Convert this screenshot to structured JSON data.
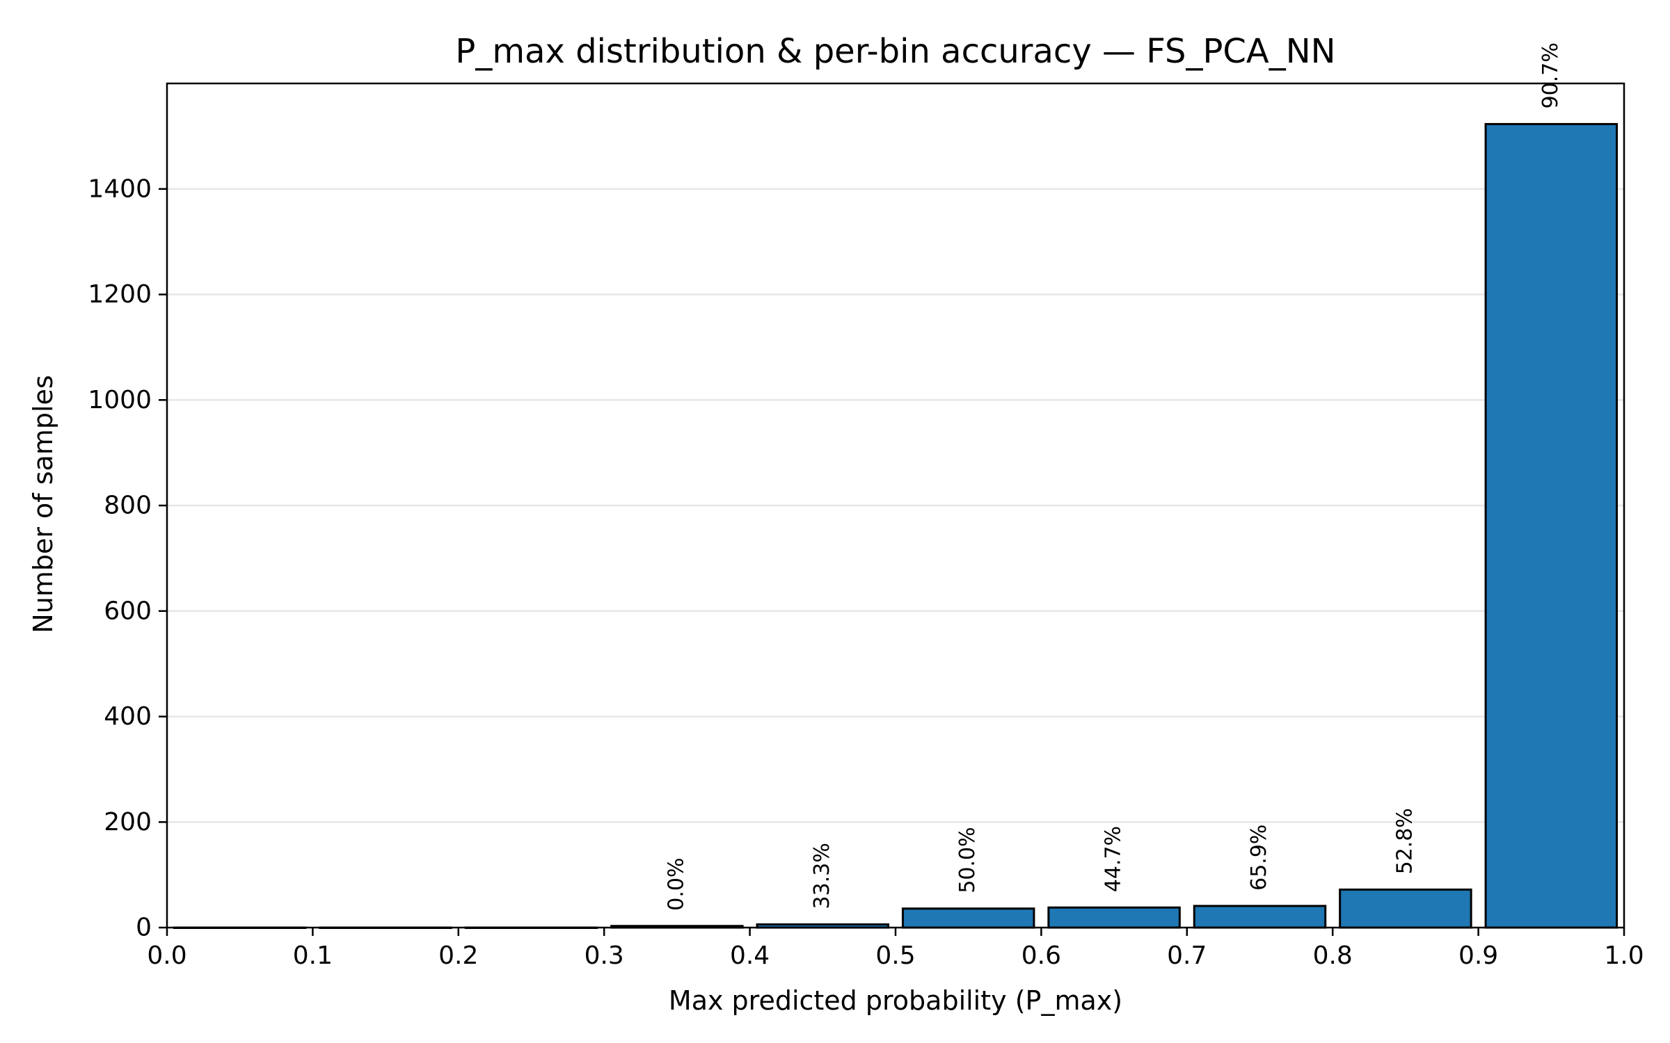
{
  "chart_data": {
    "type": "bar",
    "title": "P_max distribution & per-bin accuracy — FS_PCA_NN",
    "xlabel": "Max predicted probability (P_max)",
    "ylabel": "Number of samples",
    "xlim": [
      0.0,
      1.0
    ],
    "ylim": [
      0,
      1600
    ],
    "xticks": [
      "0.0",
      "0.1",
      "0.2",
      "0.3",
      "0.4",
      "0.5",
      "0.6",
      "0.7",
      "0.8",
      "0.9",
      "1.0"
    ],
    "yticks": [
      "0",
      "200",
      "400",
      "600",
      "800",
      "1000",
      "1200",
      "1400"
    ],
    "grid": "horizontal",
    "bar_color": "#1f77b4",
    "edge_color": "#000000",
    "grid_color": "#e6e6e6",
    "bins": [
      {
        "start": 0.0,
        "end": 0.1,
        "count": 0,
        "accuracy_label": ""
      },
      {
        "start": 0.1,
        "end": 0.2,
        "count": 0,
        "accuracy_label": ""
      },
      {
        "start": 0.2,
        "end": 0.3,
        "count": 0,
        "accuracy_label": ""
      },
      {
        "start": 0.3,
        "end": 0.4,
        "count": 3,
        "accuracy_label": "0.0%"
      },
      {
        "start": 0.4,
        "end": 0.5,
        "count": 6,
        "accuracy_label": "33.3%"
      },
      {
        "start": 0.5,
        "end": 0.6,
        "count": 36,
        "accuracy_label": "50.0%"
      },
      {
        "start": 0.6,
        "end": 0.7,
        "count": 38,
        "accuracy_label": "44.7%"
      },
      {
        "start": 0.7,
        "end": 0.8,
        "count": 41,
        "accuracy_label": "65.9%"
      },
      {
        "start": 0.8,
        "end": 0.9,
        "count": 72,
        "accuracy_label": "52.8%"
      },
      {
        "start": 0.9,
        "end": 1.0,
        "count": 1523,
        "accuracy_label": "90.7%"
      }
    ]
  }
}
